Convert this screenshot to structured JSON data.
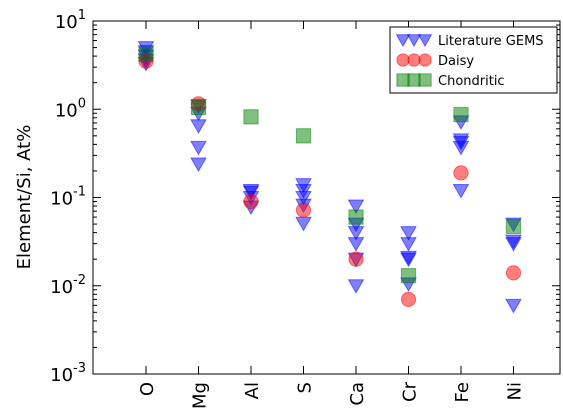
{
  "chart_data": {
    "type": "scatter",
    "yscale": "log",
    "ylim": [
      0.001,
      10
    ],
    "yticks": [
      {
        "value": 10,
        "base": "10",
        "exp": "1"
      },
      {
        "value": 1,
        "base": "10",
        "exp": "0"
      },
      {
        "value": 0.1,
        "base": "10",
        "exp": "-1"
      },
      {
        "value": 0.01,
        "base": "10",
        "exp": "-2"
      },
      {
        "value": 0.001,
        "base": "10",
        "exp": "-3"
      }
    ],
    "ylabel": "Element/Si, At%",
    "categories": [
      "O",
      "Mg",
      "Al",
      "S",
      "Ca",
      "Cr",
      "Fe",
      "Ni"
    ],
    "legend_position": "top-right",
    "series": [
      {
        "name": "Literature GEMS",
        "marker": "triangle-down",
        "color": "#0000ff",
        "points": [
          {
            "x": "O",
            "y": 5.0
          },
          {
            "x": "O",
            "y": 4.5
          },
          {
            "x": "O",
            "y": 4.0
          },
          {
            "x": "O",
            "y": 3.6
          },
          {
            "x": "O",
            "y": 3.3
          },
          {
            "x": "Mg",
            "y": 1.1
          },
          {
            "x": "Mg",
            "y": 0.9
          },
          {
            "x": "Mg",
            "y": 0.65
          },
          {
            "x": "Mg",
            "y": 0.37
          },
          {
            "x": "Mg",
            "y": 0.24
          },
          {
            "x": "Al",
            "y": 0.12
          },
          {
            "x": "Al",
            "y": 0.115
          },
          {
            "x": "Al",
            "y": 0.1
          },
          {
            "x": "Al",
            "y": 0.078
          },
          {
            "x": "S",
            "y": 0.14
          },
          {
            "x": "S",
            "y": 0.12
          },
          {
            "x": "S",
            "y": 0.1
          },
          {
            "x": "S",
            "y": 0.082
          },
          {
            "x": "S",
            "y": 0.051
          },
          {
            "x": "Ca",
            "y": 0.08
          },
          {
            "x": "Ca",
            "y": 0.05
          },
          {
            "x": "Ca",
            "y": 0.04
          },
          {
            "x": "Ca",
            "y": 0.03
          },
          {
            "x": "Ca",
            "y": 0.02
          },
          {
            "x": "Ca",
            "y": 0.01
          },
          {
            "x": "Cr",
            "y": 0.04
          },
          {
            "x": "Cr",
            "y": 0.03
          },
          {
            "x": "Cr",
            "y": 0.021
          },
          {
            "x": "Cr",
            "y": 0.02
          },
          {
            "x": "Cr",
            "y": 0.0105
          },
          {
            "x": "Fe",
            "y": 0.72
          },
          {
            "x": "Fe",
            "y": 0.45
          },
          {
            "x": "Fe",
            "y": 0.42
          },
          {
            "x": "Fe",
            "y": 0.37
          },
          {
            "x": "Fe",
            "y": 0.12
          },
          {
            "x": "Ni",
            "y": 0.05
          },
          {
            "x": "Ni",
            "y": 0.032
          },
          {
            "x": "Ni",
            "y": 0.03
          },
          {
            "x": "Ni",
            "y": 0.006
          }
        ]
      },
      {
        "name": "Daisy",
        "marker": "circle",
        "color": "#ff0000",
        "points": [
          {
            "x": "O",
            "y": 3.5
          },
          {
            "x": "Mg",
            "y": 1.15
          },
          {
            "x": "Al",
            "y": 0.09
          },
          {
            "x": "S",
            "y": 0.072
          },
          {
            "x": "Ca",
            "y": 0.02
          },
          {
            "x": "Cr",
            "y": 0.007
          },
          {
            "x": "Fe",
            "y": 0.19
          },
          {
            "x": "Ni",
            "y": 0.014
          }
        ]
      },
      {
        "name": "Chondritic",
        "marker": "square",
        "color": "#008000",
        "points": [
          {
            "x": "O",
            "y": 4.2
          },
          {
            "x": "Mg",
            "y": 1.05
          },
          {
            "x": "Al",
            "y": 0.82
          },
          {
            "x": "S",
            "y": 0.5
          },
          {
            "x": "Ca",
            "y": 0.06
          },
          {
            "x": "Cr",
            "y": 0.013
          },
          {
            "x": "Fe",
            "y": 0.87
          },
          {
            "x": "Ni",
            "y": 0.047
          }
        ]
      }
    ]
  }
}
